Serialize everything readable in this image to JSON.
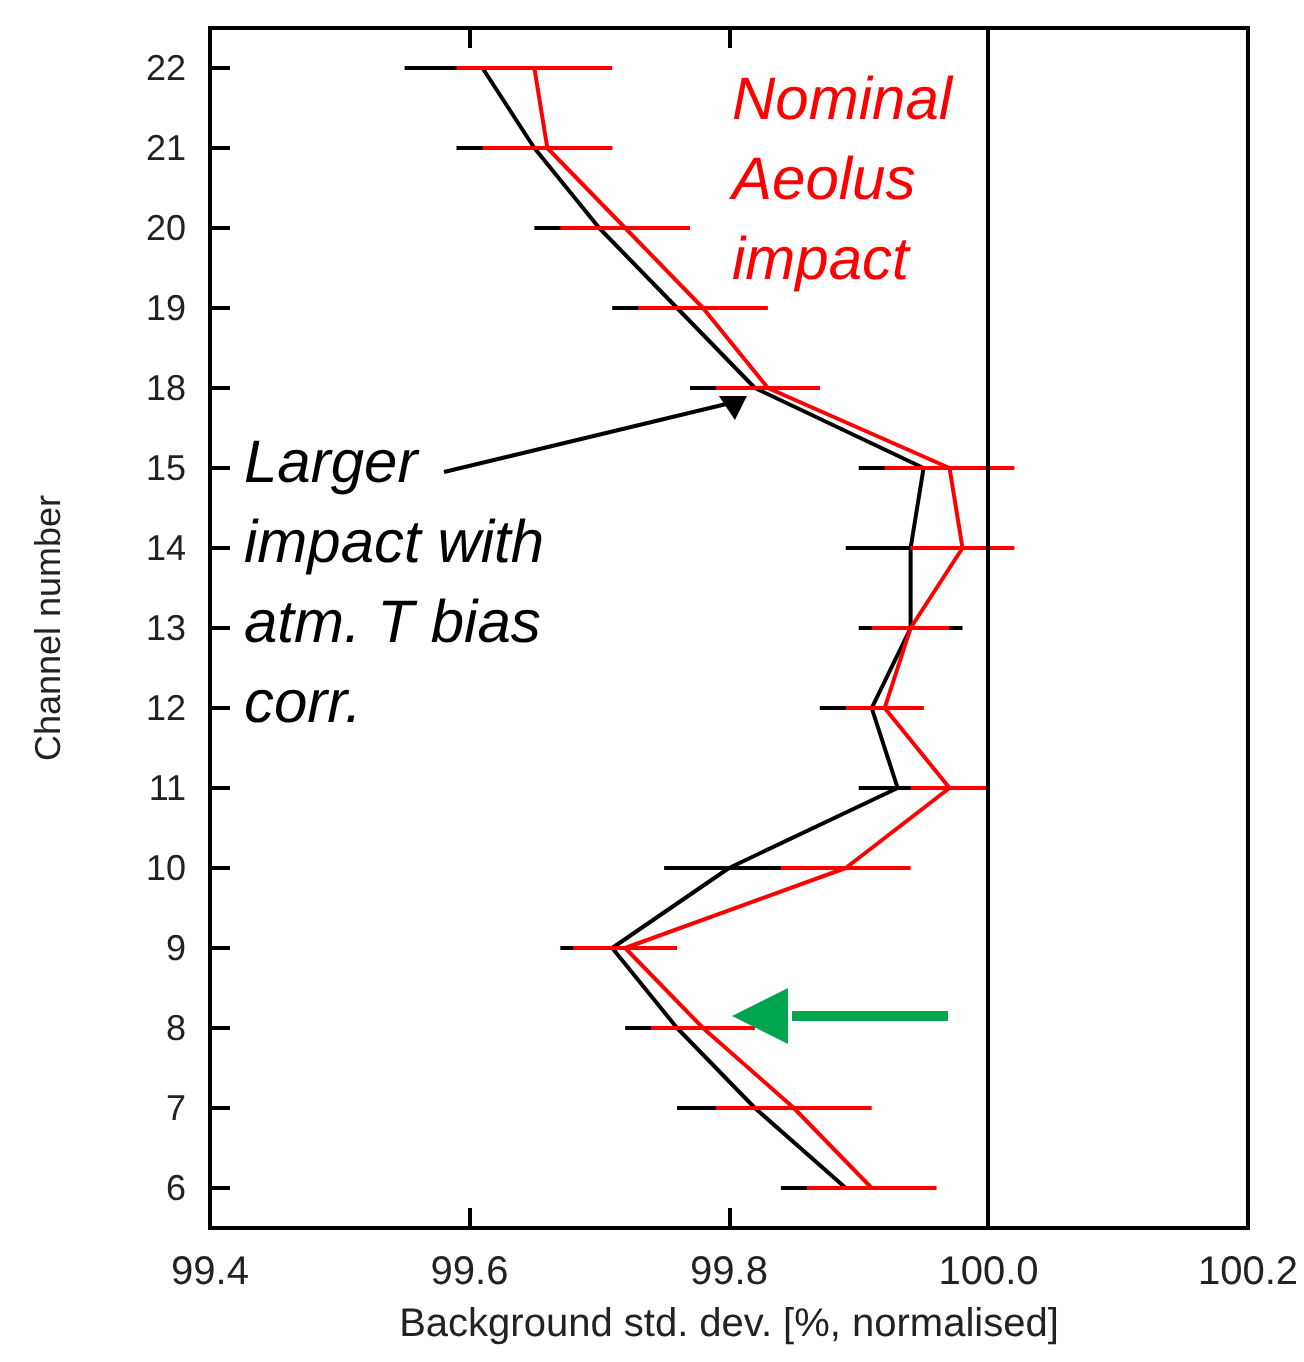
{
  "chart_data": {
    "type": "line",
    "orientation": "horizontal",
    "xlabel": "Background std. dev. [%, normalised]",
    "ylabel": "Channel number",
    "categories": [
      "22",
      "21",
      "20",
      "19",
      "18",
      "15",
      "14",
      "13",
      "12",
      "11",
      "10",
      "9",
      "8",
      "7",
      "6"
    ],
    "series": [
      {
        "color": "#000000",
        "values": [
          99.61,
          99.65,
          99.7,
          99.76,
          99.82,
          99.95,
          99.94,
          99.94,
          99.91,
          99.93,
          99.8,
          99.71,
          99.76,
          99.82,
          99.89
        ],
        "errors": [
          0.06,
          0.06,
          0.05,
          0.05,
          0.05,
          0.05,
          0.05,
          0.04,
          0.04,
          0.03,
          0.05,
          0.04,
          0.04,
          0.06,
          0.05
        ]
      },
      {
        "name": "Nominal Aeolus impact",
        "color": "#ff0000",
        "values": [
          99.65,
          99.66,
          99.72,
          99.78,
          99.83,
          99.97,
          99.98,
          99.94,
          99.92,
          99.97,
          99.89,
          99.72,
          99.78,
          99.85,
          99.91
        ],
        "errors": [
          0.06,
          0.05,
          0.05,
          0.05,
          0.04,
          0.05,
          0.04,
          0.03,
          0.03,
          0.03,
          0.05,
          0.04,
          0.04,
          0.06,
          0.05
        ]
      }
    ],
    "xlim": [
      99.4,
      100.2
    ],
    "xticks": [
      99.4,
      99.6,
      99.8,
      {
        "value": 100,
        "label": "100.0"
      },
      100.2
    ],
    "ref_lines": [
      {
        "axis": "x",
        "value": 100,
        "label": null,
        "color": "#000000"
      }
    ],
    "annotations": [
      {
        "text": "Larger impact with atm. T bias corr.",
        "x": 99.82,
        "y": "18"
      }
    ],
    "grid": false,
    "legend": false,
    "marker": "none",
    "line_style": "solid"
  }
}
